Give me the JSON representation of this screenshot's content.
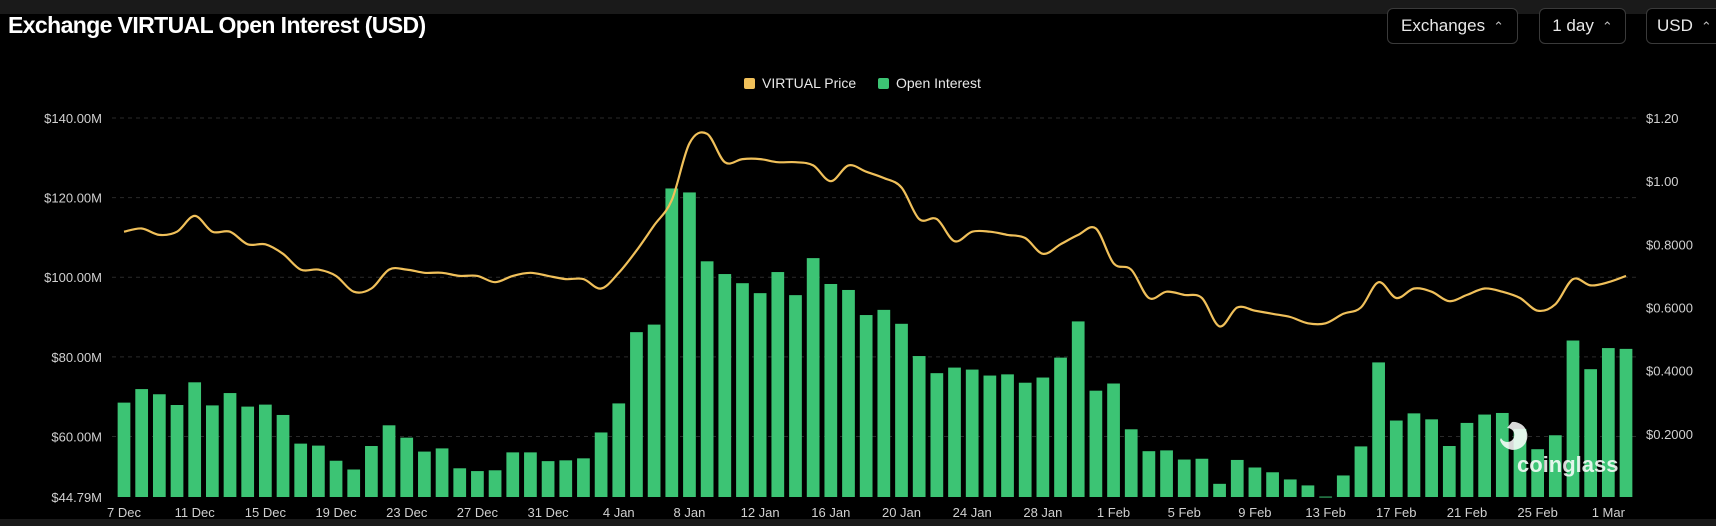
{
  "header": {
    "title": "Exchange VIRTUAL Open Interest (USD)",
    "controls": [
      {
        "label": "Exchanges"
      },
      {
        "label": "1 day"
      },
      {
        "label": "USD"
      }
    ],
    "chevron_glyph": "⌃⌄"
  },
  "watermark": {
    "text": "coinglass",
    "icon": "coinglass-logo-icon"
  },
  "colors": {
    "price": "#f0c05a",
    "open_interest": "#3cc474",
    "grid": "#2a2a2a",
    "axis_text": "#d0d0d0"
  },
  "chart_data": {
    "type": "bar+line",
    "title": "Exchange VIRTUAL Open Interest (USD)",
    "legend": [
      {
        "name": "VIRTUAL Price",
        "color": "#f0c05a"
      },
      {
        "name": "Open Interest",
        "color": "#3cc474"
      }
    ],
    "legend_position": "top-center",
    "left_axis": {
      "min": 44.79,
      "max": 140,
      "ticks": [
        "$140.00M",
        "$120.00M",
        "$100.00M",
        "$80.00M",
        "$60.00M",
        "$44.79M"
      ],
      "tick_values": [
        140,
        120,
        100,
        80,
        60,
        44.79
      ],
      "unit": "M USD"
    },
    "right_axis": {
      "min": 0,
      "max": 1.2,
      "ticks": [
        "$1.20",
        "$1.00",
        "$0.8000",
        "$0.6000",
        "$0.4000",
        "$0.2000"
      ],
      "tick_values": [
        1.2,
        1.0,
        0.8,
        0.6,
        0.4,
        0.2
      ]
    },
    "x_ticks": [
      "7 Dec",
      "11 Dec",
      "15 Dec",
      "19 Dec",
      "23 Dec",
      "27 Dec",
      "31 Dec",
      "4 Jan",
      "8 Jan",
      "12 Jan",
      "16 Jan",
      "20 Jan",
      "24 Jan",
      "28 Jan",
      "1 Feb",
      "5 Feb",
      "9 Feb",
      "13 Feb",
      "17 Feb",
      "21 Feb",
      "25 Feb",
      "1 Mar"
    ],
    "x_tick_day_index": [
      0,
      4,
      8,
      12,
      16,
      20,
      24,
      28,
      32,
      36,
      40,
      44,
      48,
      52,
      56,
      60,
      64,
      68,
      72,
      76,
      80,
      84
    ],
    "series": [
      {
        "name": "Open Interest",
        "axis": "left",
        "values": [
          68.5,
          71.9,
          70.6,
          67.9,
          73.6,
          67.8,
          70.9,
          67.5,
          68.0,
          65.4,
          58.2,
          57.7,
          53.9,
          51.7,
          57.6,
          62.8,
          59.7,
          56.2,
          57.0,
          52.0,
          51.3,
          51.5,
          56.0,
          56.0,
          53.8,
          54.0,
          54.5,
          61.0,
          68.3,
          86.2,
          88.1,
          122.3,
          121.3,
          104.0,
          100.8,
          98.5,
          96.0,
          101.3,
          95.5,
          104.8,
          98.3,
          96.8,
          90.5,
          91.8,
          88.3,
          80.2,
          75.9,
          77.3,
          76.8,
          75.3,
          75.6,
          73.5,
          74.8,
          79.8,
          88.9,
          71.5,
          73.3,
          61.8,
          56.3,
          56.5,
          54.2,
          54.4,
          48.1,
          54.1,
          52.2,
          51.0,
          49.2,
          47.7,
          44.9,
          50.2,
          57.5,
          78.6,
          64.0,
          65.8,
          64.3,
          57.6,
          63.4,
          65.5,
          65.9,
          61.9,
          56.8,
          60.3,
          84.1,
          76.9,
          82.2,
          82.0
        ]
      },
      {
        "name": "VIRTUAL Price",
        "axis": "right",
        "values": [
          0.84,
          0.85,
          0.83,
          0.84,
          0.89,
          0.84,
          0.84,
          0.8,
          0.8,
          0.77,
          0.72,
          0.72,
          0.7,
          0.65,
          0.66,
          0.72,
          0.72,
          0.71,
          0.71,
          0.7,
          0.7,
          0.68,
          0.7,
          0.71,
          0.7,
          0.69,
          0.69,
          0.66,
          0.71,
          0.78,
          0.86,
          0.94,
          1.12,
          1.15,
          1.06,
          1.07,
          1.07,
          1.06,
          1.06,
          1.05,
          1.0,
          1.05,
          1.03,
          1.01,
          0.98,
          0.88,
          0.88,
          0.81,
          0.84,
          0.84,
          0.83,
          0.82,
          0.77,
          0.8,
          0.83,
          0.85,
          0.74,
          0.72,
          0.63,
          0.65,
          0.64,
          0.63,
          0.54,
          0.6,
          0.59,
          0.58,
          0.57,
          0.55,
          0.55,
          0.58,
          0.6,
          0.68,
          0.63,
          0.66,
          0.65,
          0.62,
          0.64,
          0.66,
          0.65,
          0.63,
          0.59,
          0.61,
          0.69,
          0.67,
          0.68,
          0.7
        ]
      }
    ]
  }
}
